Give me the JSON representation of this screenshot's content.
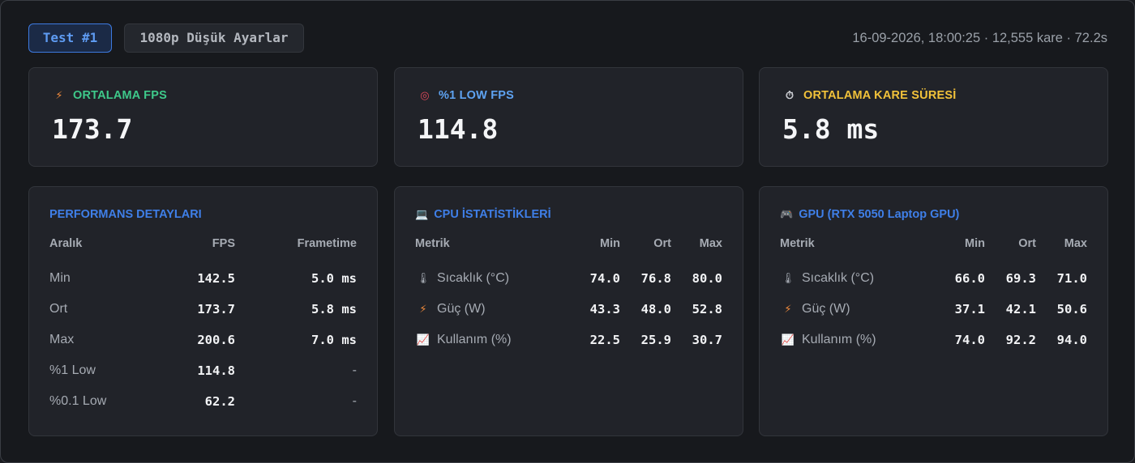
{
  "header": {
    "test_badge": "Test #1",
    "preset_badge": "1080p Düşük Ayarlar",
    "meta": "16-09-2026, 18:00:25 · 12,555 kare · 72.2s"
  },
  "stats": [
    {
      "label": "ORTALAMA FPS",
      "value": "173.7",
      "icon": "lightning-icon",
      "glyph": "⚡",
      "color": "#3ec98a"
    },
    {
      "label": "%1 LOW FPS",
      "value": "114.8",
      "icon": "target-icon",
      "glyph": "◎",
      "color": "#5ea3f2"
    },
    {
      "label": "ORTALAMA KARE SÜRESİ",
      "value": "5.8 ms",
      "icon": "stopwatch-icon",
      "glyph": "⏱",
      "color": "#f2c23a"
    }
  ],
  "performance": {
    "title": "PERFORMANS DETAYLARI",
    "headers": [
      "Aralık",
      "FPS",
      "Frametime"
    ],
    "rows": [
      [
        "Min",
        "142.5",
        "5.0 ms"
      ],
      [
        "Ort",
        "173.7",
        "5.8 ms"
      ],
      [
        "Max",
        "200.6",
        "7.0 ms"
      ],
      [
        "%1 Low",
        "114.8",
        "-"
      ],
      [
        "%0.1 Low",
        "62.2",
        "-"
      ]
    ]
  },
  "cpu": {
    "title": "CPU İSTATİSTİKLERİ",
    "icon": "laptop-icon",
    "headers": [
      "Metrik",
      "Min",
      "Ort",
      "Max"
    ],
    "rows": [
      {
        "icon": "thermometer-icon",
        "glyph": "🌡",
        "label": "Sıcaklık (°C)",
        "min": "74.0",
        "ort": "76.8",
        "max": "80.0"
      },
      {
        "icon": "lightning-icon",
        "glyph": "⚡",
        "label": "Güç (W)",
        "min": "43.3",
        "ort": "48.0",
        "max": "52.8"
      },
      {
        "icon": "chart-icon",
        "glyph": "📈",
        "label": "Kullanım (%)",
        "min": "22.5",
        "ort": "25.9",
        "max": "30.7"
      }
    ]
  },
  "gpu": {
    "title": "GPU (RTX 5050 Laptop GPU)",
    "icon": "gamepad-icon",
    "headers": [
      "Metrik",
      "Min",
      "Ort",
      "Max"
    ],
    "rows": [
      {
        "icon": "thermometer-icon",
        "glyph": "🌡",
        "label": "Sıcaklık (°C)",
        "min": "66.0",
        "ort": "69.3",
        "max": "71.0"
      },
      {
        "icon": "lightning-icon",
        "glyph": "⚡",
        "label": "Güç (W)",
        "min": "37.1",
        "ort": "42.1",
        "max": "50.6"
      },
      {
        "icon": "chart-icon",
        "glyph": "📈",
        "label": "Kullanım (%)",
        "min": "74.0",
        "ort": "92.2",
        "max": "94.0"
      }
    ]
  }
}
